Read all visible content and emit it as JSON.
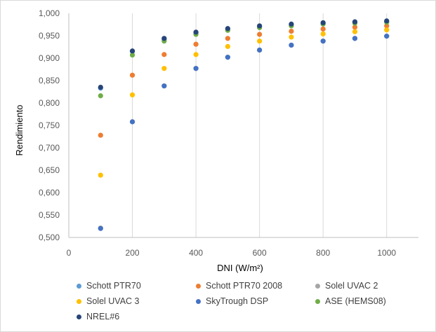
{
  "chart_data": {
    "type": "scatter",
    "title": "",
    "xlabel": "DNI (W/m²)",
    "ylabel": "Rendimiento",
    "xlim": [
      0,
      1100
    ],
    "ylim": [
      0.5,
      1.0
    ],
    "xticks": [
      0,
      200,
      400,
      600,
      800,
      1000
    ],
    "yticks": [
      0.5,
      0.55,
      0.6,
      0.65,
      0.7,
      0.75,
      0.8,
      0.85,
      0.9,
      0.95,
      1.0
    ],
    "ytick_labels": [
      "0,500",
      "0,550",
      "0,600",
      "0,650",
      "0,700",
      "0,750",
      "0,800",
      "0,850",
      "0,900",
      "0,950",
      "1,000"
    ],
    "grid": "vertical",
    "legend_position": "bottom",
    "x": [
      100,
      200,
      300,
      400,
      500,
      600,
      700,
      800,
      900,
      1000
    ],
    "series": [
      {
        "name": "Schott PTR70",
        "color": "#5b9bd5",
        "values": [
          0.833,
          0.915,
          0.942,
          0.956,
          0.964,
          0.97,
          0.974,
          0.977,
          0.979,
          0.981
        ]
      },
      {
        "name": "Schott PTR70 2008",
        "color": "#ed7d31",
        "values": [
          0.728,
          0.862,
          0.908,
          0.931,
          0.944,
          0.953,
          0.96,
          0.965,
          0.969,
          0.972
        ]
      },
      {
        "name": "Solel UVAC 2",
        "color": "#a5a5a5",
        "values": [
          0.521,
          0.758,
          0.838,
          0.877,
          0.902,
          0.918,
          0.929,
          0.938,
          0.944,
          0.949
        ]
      },
      {
        "name": "Solel UVAC 3",
        "color": "#ffc000",
        "values": [
          0.639,
          0.818,
          0.877,
          0.908,
          0.926,
          0.938,
          0.947,
          0.954,
          0.959,
          0.963
        ]
      },
      {
        "name": "SkyTrough DSP",
        "color": "#4472c4",
        "values": [
          0.52,
          0.758,
          0.838,
          0.877,
          0.902,
          0.918,
          0.929,
          0.938,
          0.944,
          0.949
        ]
      },
      {
        "name": "ASE (HEMS08)",
        "color": "#70ad47",
        "values": [
          0.816,
          0.907,
          0.938,
          0.953,
          0.962,
          0.968,
          0.972,
          0.976,
          0.978,
          0.98
        ]
      },
      {
        "name": "NREL#6",
        "color": "#264478",
        "values": [
          0.835,
          0.916,
          0.944,
          0.958,
          0.966,
          0.972,
          0.976,
          0.979,
          0.981,
          0.983
        ]
      }
    ]
  }
}
